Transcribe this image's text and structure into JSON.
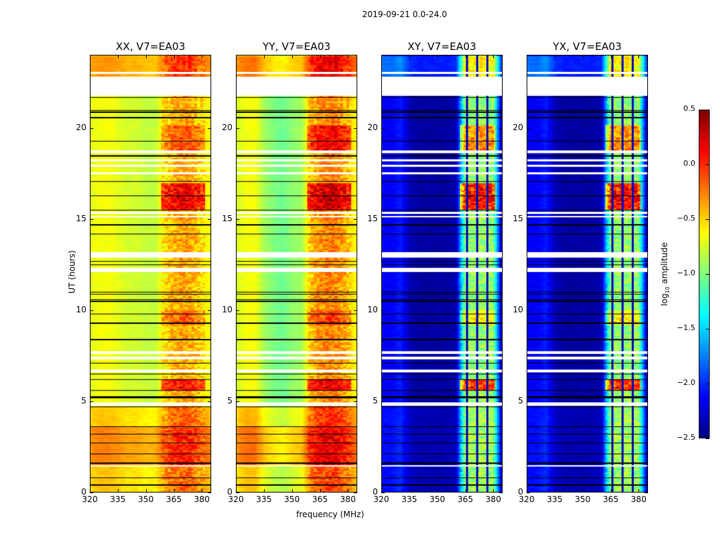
{
  "figure_title": "2019-09-21 0.0-24.0",
  "chart_data": {
    "type": "heatmap",
    "title": "2019-09-21 0.0-24.0",
    "xlabel": "frequency (MHz)",
    "ylabel": "UT (hours)",
    "xlim": [
      320,
      385
    ],
    "ylim": [
      0,
      24
    ],
    "xticks": [
      "320",
      "335",
      "350",
      "365",
      "380"
    ],
    "xtick_values": [
      320,
      335,
      350,
      365,
      380
    ],
    "yticks": [
      "0",
      "5",
      "10",
      "15",
      "20"
    ],
    "ytick_values": [
      0,
      5,
      10,
      15,
      20
    ],
    "colorbar": {
      "label_prefix": "log",
      "label_sub": "10",
      "label_suffix": " amplitude",
      "range": [
        -2.5,
        0.5
      ],
      "colormap": "jet",
      "ticks": [
        "0.5",
        "0.0",
        "−0.5",
        "−1.0",
        "−1.5",
        "−2.0",
        "−2.5"
      ],
      "tick_values": [
        0.5,
        0.0,
        -0.5,
        -1.0,
        -1.5,
        -2.0,
        -2.5
      ]
    },
    "freq_bins": [
      320,
      325,
      330,
      335,
      340,
      345,
      350,
      355,
      360,
      365,
      370,
      375,
      380,
      385
    ],
    "white_gaps_hours": [
      [
        1.4,
        1.5
      ],
      [
        4.75,
        4.95
      ],
      [
        6.6,
        6.75
      ],
      [
        7.3,
        7.45
      ],
      [
        7.6,
        7.75
      ],
      [
        12.1,
        12.35
      ],
      [
        12.9,
        13.2
      ],
      [
        15.1,
        15.2
      ],
      [
        15.3,
        15.4
      ],
      [
        17.5,
        17.6
      ],
      [
        17.9,
        18.0
      ],
      [
        18.2,
        18.3
      ],
      [
        18.65,
        18.8
      ],
      [
        21.8,
        22.85
      ],
      [
        23.0,
        23.1
      ]
    ],
    "flag_lines_hours": [
      0.4,
      0.8,
      1.6,
      2.1,
      2.7,
      3.2,
      3.6,
      4.7,
      5.2,
      5.25,
      5.6,
      6.2,
      6.5,
      7.1,
      8.4,
      9.3,
      9.8,
      10.5,
      10.6,
      10.9,
      11.0,
      12.5,
      12.7,
      14.2,
      14.7,
      15.5,
      16.3,
      17.1,
      18.5,
      19.3,
      20.6,
      20.9,
      21.0,
      21.7
    ],
    "panels": [
      {
        "title": "XX, V7=EA03",
        "freq_profile": [
          -0.45,
          -0.4,
          -0.4,
          -0.45,
          -0.5,
          -0.5,
          -0.55,
          -0.55,
          -0.3,
          -0.15,
          -0.1,
          -0.15,
          -0.3,
          -0.4
        ],
        "time_segments": [
          [
            0,
            1.5,
            -0.05
          ],
          [
            1.5,
            3.6,
            0.15
          ],
          [
            3.6,
            4.7,
            -0.05
          ],
          [
            4.7,
            22.0,
            -0.25
          ],
          [
            22.0,
            24,
            0.1
          ]
        ],
        "rfi_band": [
          358,
          382
        ],
        "rfi_hours": [
          [
            5.6,
            6.2,
            0.6
          ],
          [
            15.5,
            17.0,
            0.7
          ],
          [
            18.8,
            20.2,
            0.3
          ],
          [
            9.2,
            10.0,
            0.25
          ]
        ]
      },
      {
        "title": "YY, V7=EA03",
        "freq_profile": [
          -0.6,
          -0.5,
          -0.5,
          -0.75,
          -0.85,
          -0.9,
          -0.8,
          -0.75,
          -0.3,
          -0.15,
          -0.1,
          -0.15,
          -0.3,
          -0.5
        ],
        "time_segments": [
          [
            0,
            1.5,
            0.05
          ],
          [
            1.5,
            3.6,
            0.3
          ],
          [
            3.6,
            4.7,
            0.1
          ],
          [
            4.7,
            22.0,
            -0.15
          ],
          [
            22.0,
            24,
            0.3
          ]
        ],
        "rfi_band": [
          358,
          382
        ],
        "rfi_hours": [
          [
            5.6,
            6.2,
            0.6
          ],
          [
            15.5,
            17.0,
            0.7
          ],
          [
            18.8,
            20.2,
            0.5
          ],
          [
            9.2,
            10.0,
            0.25
          ]
        ]
      },
      {
        "title": "XY, V7=EA03",
        "freq_profile": [
          -2.1,
          -2.1,
          -2.0,
          -2.3,
          -2.35,
          -2.35,
          -2.35,
          -2.35,
          -2.3,
          -0.9,
          -0.9,
          -0.9,
          -0.9,
          -2.4
        ],
        "time_segments": [
          [
            0,
            4.7,
            0.0
          ],
          [
            4.7,
            22.0,
            -0.05
          ],
          [
            22.0,
            24,
            0.3
          ]
        ],
        "rfi_band": [
          362,
          381
        ],
        "rfi_hours": [
          [
            5.6,
            6.2,
            1.2
          ],
          [
            15.5,
            17.0,
            1.3
          ],
          [
            18.8,
            20.2,
            0.8
          ],
          [
            9.2,
            10.0,
            0.4
          ]
        ]
      },
      {
        "title": "YX, V7=EA03",
        "freq_profile": [
          -2.1,
          -2.1,
          -2.0,
          -2.3,
          -2.35,
          -2.35,
          -2.35,
          -2.35,
          -2.3,
          -0.9,
          -0.9,
          -0.9,
          -0.9,
          -2.4
        ],
        "time_segments": [
          [
            0,
            4.7,
            0.0
          ],
          [
            4.7,
            22.0,
            -0.05
          ],
          [
            22.0,
            24,
            0.3
          ]
        ],
        "rfi_band": [
          362,
          381
        ],
        "rfi_hours": [
          [
            5.6,
            6.2,
            1.2
          ],
          [
            15.5,
            17.0,
            1.3
          ],
          [
            18.8,
            20.2,
            0.8
          ],
          [
            9.2,
            10.0,
            0.4
          ]
        ]
      }
    ]
  }
}
